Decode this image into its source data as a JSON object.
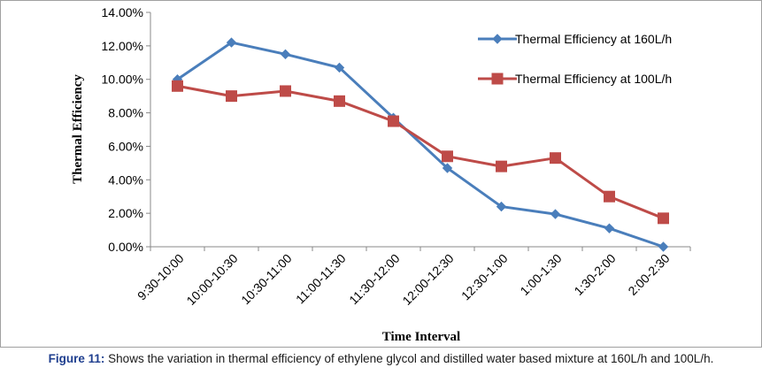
{
  "chart_data": {
    "type": "line",
    "categories": [
      "9:30-10:00",
      "10:00-10:30",
      "10:30-11:00",
      "11:00-11:30",
      "11:30-12:00",
      "12:00-12:30",
      "12:30-1:00",
      "1:00-1:30",
      "1:30-2:00",
      "2:00-2:30"
    ],
    "series": [
      {
        "name": "Thermal Efficiency at 160L/h",
        "color": "#4a7ebb",
        "marker": "diamond",
        "values": [
          10.0,
          12.2,
          11.5,
          10.7,
          7.7,
          4.7,
          2.4,
          1.95,
          1.1,
          0.0
        ]
      },
      {
        "name": "Thermal Efficiency at 100L/h",
        "color": "#be4b48",
        "marker": "square",
        "values": [
          9.6,
          9.0,
          9.3,
          8.7,
          7.5,
          5.4,
          4.8,
          5.3,
          3.0,
          1.7
        ]
      }
    ],
    "xlabel": "Time Interval",
    "ylabel": "Thermal Efficiency",
    "ylim": [
      0,
      14
    ],
    "yticks": [
      "0.00%",
      "2.00%",
      "4.00%",
      "6.00%",
      "8.00%",
      "10.00%",
      "12.00%",
      "14.00%"
    ],
    "grid": false,
    "legend_position": "right"
  },
  "caption": {
    "label": "Figure 11:",
    "text": " Shows the variation in thermal efficiency of ethylene glycol and distilled water based mixture at 160L/h and 100L/h."
  }
}
